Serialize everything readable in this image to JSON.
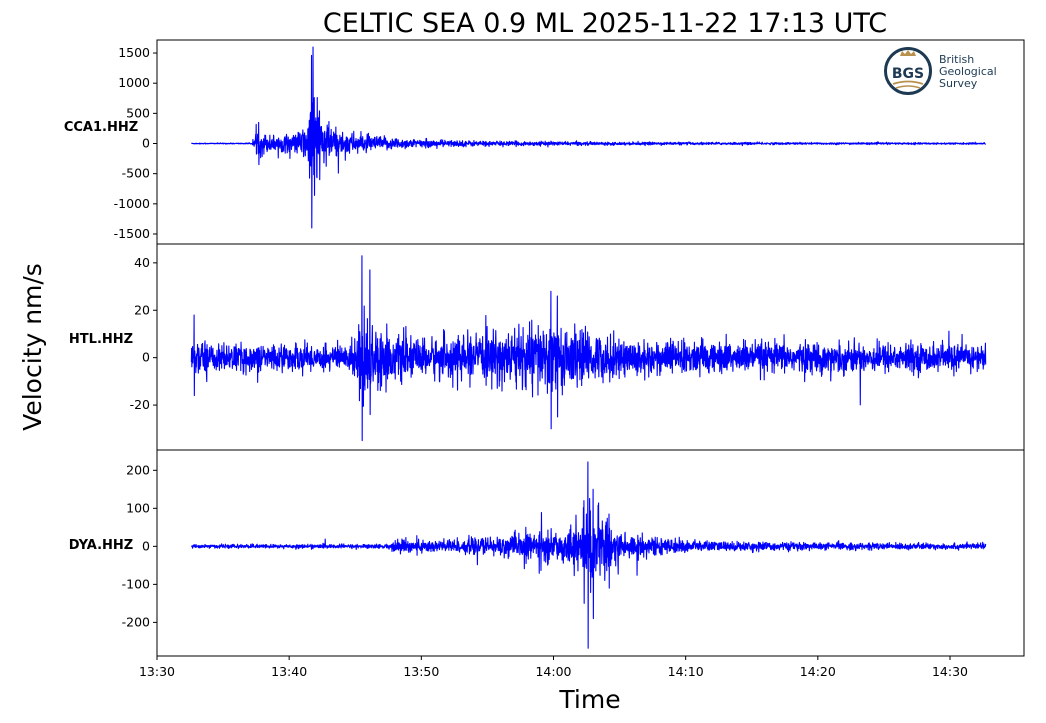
{
  "chart_data": {
    "type": "line",
    "title": "CELTIC SEA 0.9 ML   2025-11-22 17:13 UTC",
    "xlabel": "Time",
    "ylabel": "Velocity nm/s",
    "x_ticks": [
      "13:30",
      "13:40",
      "13:50",
      "14:00",
      "14:10",
      "14:20",
      "14:30"
    ],
    "x_range_minutes": [
      0,
      65.6
    ],
    "trace_span_minutes": [
      2.6,
      62.7
    ],
    "series_color": "#0000ff",
    "panels": [
      {
        "name": "CCA1.HHZ",
        "ylim": [
          -1550,
          1600
        ],
        "yticks": [
          -1500,
          -1000,
          -500,
          0,
          500,
          1000,
          1500
        ],
        "envelope": [
          [
            2.6,
            8
          ],
          [
            7.2,
            10
          ],
          [
            7.6,
            240
          ],
          [
            8.5,
            150
          ],
          [
            10.5,
            170
          ],
          [
            11.5,
            400
          ],
          [
            11.7,
            1450
          ],
          [
            11.9,
            1100
          ],
          [
            12.2,
            600
          ],
          [
            13.5,
            250
          ],
          [
            16,
            140
          ],
          [
            20,
            70
          ],
          [
            26,
            40
          ],
          [
            35,
            25
          ],
          [
            50,
            18
          ],
          [
            62.7,
            14
          ]
        ],
        "events": [
          {
            "t": 7.7,
            "peak": 350,
            "trough": -350
          },
          {
            "t": 11.7,
            "peak": 1460,
            "trough": -1400
          },
          {
            "t": 11.9,
            "peak": 760,
            "trough": -860
          },
          {
            "t": 12.3,
            "peak": 540,
            "trough": -600
          }
        ]
      },
      {
        "name": "HTL.HHZ",
        "ylim": [
          -36,
          45
        ],
        "yticks": [
          -20,
          0,
          20,
          40
        ],
        "envelope": [
          [
            2.6,
            5
          ],
          [
            3.2,
            9
          ],
          [
            4.2,
            6
          ],
          [
            14.5,
            6
          ],
          [
            15,
            9
          ],
          [
            15.2,
            18
          ],
          [
            15.6,
            22
          ],
          [
            16.5,
            14
          ],
          [
            18,
            10
          ],
          [
            20,
            8
          ],
          [
            22,
            10
          ],
          [
            24,
            9
          ],
          [
            26,
            12
          ],
          [
            28,
            15
          ],
          [
            29.5,
            16
          ],
          [
            31,
            14
          ],
          [
            33,
            11
          ],
          [
            36,
            8
          ],
          [
            45,
            7
          ],
          [
            62.7,
            6
          ]
        ],
        "events": [
          {
            "t": 2.8,
            "peak": 18,
            "trough": -16
          },
          {
            "t": 15.5,
            "peak": 43,
            "trough": -35
          },
          {
            "t": 16.1,
            "peak": 37,
            "trough": -24
          },
          {
            "t": 29.8,
            "peak": 28,
            "trough": -30
          },
          {
            "t": 30.3,
            "peak": 26,
            "trough": -25
          }
        ]
      },
      {
        "name": "DYA.HHZ",
        "ylim": [
          -270,
          235
        ],
        "yticks": [
          -200,
          -100,
          0,
          100,
          200
        ],
        "envelope": [
          [
            2.6,
            5
          ],
          [
            17.5,
            6
          ],
          [
            18.3,
            22
          ],
          [
            20,
            18
          ],
          [
            24,
            22
          ],
          [
            28,
            35
          ],
          [
            31,
            45
          ],
          [
            32,
            75
          ],
          [
            32.8,
            110
          ],
          [
            33.5,
            90
          ],
          [
            35,
            45
          ],
          [
            38,
            22
          ],
          [
            42,
            14
          ],
          [
            50,
            10
          ],
          [
            62.7,
            8
          ]
        ],
        "events": [
          {
            "t": 32.6,
            "peak": 222,
            "trough": -268
          },
          {
            "t": 33,
            "peak": 150,
            "trough": -190
          },
          {
            "t": 32.3,
            "peak": 120,
            "trough": -150
          },
          {
            "t": 34.2,
            "peak": 85,
            "trough": -110
          },
          {
            "t": 27.9,
            "peak": 50,
            "trough": -45
          }
        ]
      }
    ]
  },
  "logo": {
    "abbr": "BGS",
    "name_lines": [
      "British",
      "Geological",
      "Survey"
    ],
    "navy": "#1d3a52",
    "gold": "#b8924d"
  }
}
